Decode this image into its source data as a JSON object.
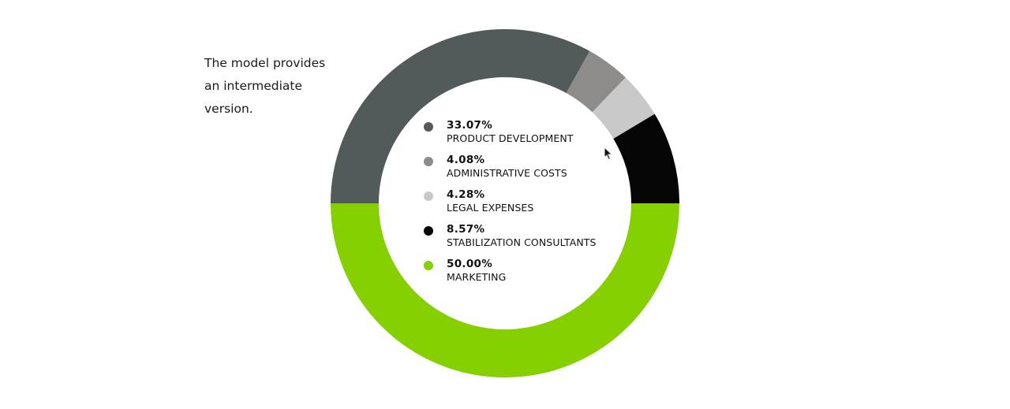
{
  "intro": {
    "lines": [
      "The model provides",
      "an intermediate",
      "version."
    ]
  },
  "chart_data": {
    "type": "pie",
    "variant": "donut",
    "title": "",
    "slices": [
      {
        "label": "PRODUCT DEVELOPMENT",
        "value": 33.07,
        "display": "33.07%",
        "color": "#525a5a"
      },
      {
        "label": "ADMINISTRATIVE COSTS",
        "value": 4.08,
        "display": "4.08%",
        "color": "#8e8b8b"
      },
      {
        "label": "LEGAL EXPENSES",
        "value": 4.28,
        "display": "4.28%",
        "color": "#c8c8c8"
      },
      {
        "label": "STABILIZATION CONSULTANTS",
        "value": 8.57,
        "display": "8.57%",
        "color": "#050505"
      },
      {
        "label": "MARKETING",
        "value": 50.0,
        "display": "50.00%",
        "color": "#86cf00"
      }
    ],
    "legend_placement": "center"
  },
  "icons": {
    "cursor": "mouse-pointer-icon"
  }
}
